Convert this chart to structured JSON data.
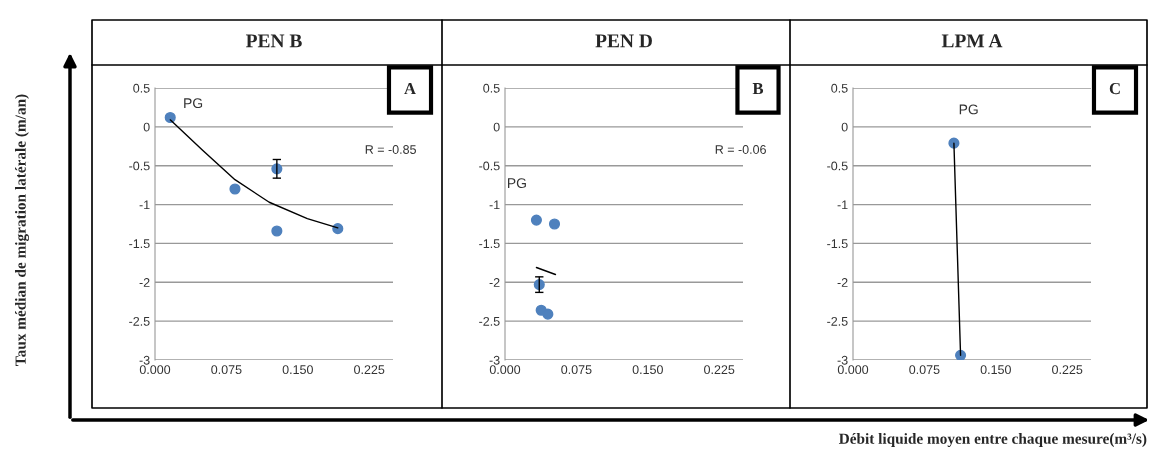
{
  "chart_data": [
    {
      "type": "scatter",
      "title": "PEN B",
      "ylabel": "Taux médian de migration latérale (m/an)",
      "xlim": [
        0,
        0.25
      ],
      "ylim": [
        -3,
        0.5
      ],
      "xticks": [
        {
          "value": 0,
          "label": "0.000"
        },
        {
          "value": 0.075,
          "label": "0.075"
        },
        {
          "value": 0.15,
          "label": "0.150"
        },
        {
          "value": 0.225,
          "label": "0.225"
        }
      ],
      "yticks": [
        -3,
        -2.5,
        -2,
        -1.5,
        -1,
        -0.5,
        0,
        0.5
      ],
      "grid": "y",
      "marker": "circle",
      "series": [
        {
          "color": "#4f81bd",
          "x": [
            0.016,
            0.084,
            0.128,
            0.128,
            0.192
          ],
          "values": [
            0.12,
            -0.8,
            -0.54,
            -1.34,
            -1.31
          ],
          "errors": [
            null,
            null,
            0.12,
            null,
            null
          ]
        },
        {
          "type": "line",
          "marker": "none",
          "color": "#000000",
          "x": [
            0.016,
            0.05,
            0.084,
            0.12,
            0.16,
            0.192
          ],
          "values": [
            0.09,
            -0.3,
            -0.68,
            -0.97,
            -1.18,
            -1.3
          ]
        }
      ],
      "annotations": [
        "PG",
        "R = -0.85",
        "A"
      ]
    },
    {
      "type": "scatter",
      "title": "PEN D",
      "xlim": [
        0,
        0.25
      ],
      "ylim": [
        -3,
        0.5
      ],
      "xticks": [
        {
          "value": 0,
          "label": "0.000"
        },
        {
          "value": 0.075,
          "label": "0.075"
        },
        {
          "value": 0.15,
          "label": "0.150"
        },
        {
          "value": 0.225,
          "label": "0.225"
        }
      ],
      "yticks": [
        -3,
        -2.5,
        -2,
        -1.5,
        -1,
        -0.5,
        0,
        0.5
      ],
      "grid": "y",
      "marker": "circle",
      "series": [
        {
          "color": "#4f81bd",
          "x": [
            0.033,
            0.052,
            0.036,
            0.038,
            0.045
          ],
          "values": [
            -1.2,
            -1.25,
            -2.03,
            -2.36,
            -2.41
          ],
          "errors": [
            null,
            null,
            0.1,
            null,
            null
          ]
        },
        {
          "type": "line",
          "marker": "none",
          "color": "#000000",
          "x": [
            0.033,
            0.053
          ],
          "values": [
            -1.81,
            -1.9
          ]
        }
      ],
      "annotations": [
        "PG",
        "R = -0.06",
        "B"
      ]
    },
    {
      "type": "scatter",
      "title": "LPM A",
      "xlabel": "Débit liquide moyen entre chaque mesure(m³/s)",
      "xlim": [
        0,
        0.25
      ],
      "ylim": [
        -3,
        0.5
      ],
      "xticks": [
        {
          "value": 0,
          "label": "0.000"
        },
        {
          "value": 0.075,
          "label": "0.075"
        },
        {
          "value": 0.15,
          "label": "0.150"
        },
        {
          "value": 0.225,
          "label": "0.225"
        }
      ],
      "yticks": [
        -3,
        -2.5,
        -2,
        -1.5,
        -1,
        -0.5,
        0,
        0.5
      ],
      "grid": "y",
      "marker": "circle",
      "series": [
        {
          "color": "#4f81bd",
          "x": [
            0.106,
            0.113
          ],
          "values": [
            -0.21,
            -2.94
          ]
        },
        {
          "type": "line",
          "marker": "none",
          "color": "#000000",
          "x": [
            0.106,
            0.113
          ],
          "values": [
            -0.21,
            -2.94
          ]
        }
      ],
      "annotations": [
        "PG",
        "C"
      ]
    }
  ]
}
